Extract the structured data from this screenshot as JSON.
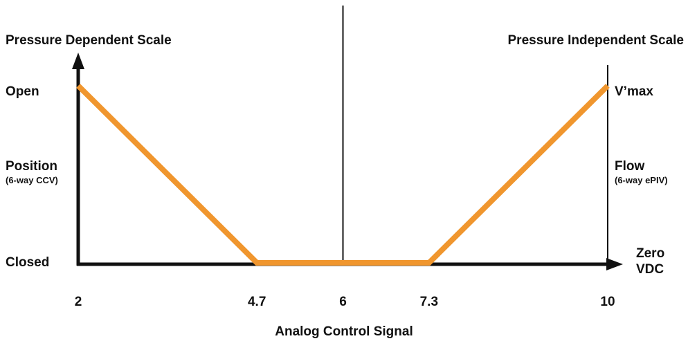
{
  "chart_data": {
    "type": "line",
    "title_left": "Pressure Dependent Scale",
    "title_right": "Pressure Independent Scale",
    "xlabel": "Analog Control Signal",
    "x_ticks": [
      "2",
      "4.7",
      "6",
      "7.3",
      "10"
    ],
    "xlim": [
      2,
      10
    ],
    "ylim": [
      0,
      1
    ],
    "y_left_labels": {
      "top": "Open",
      "mid": "Position",
      "mid_sub": "(6-way CCV)",
      "bottom": "Closed"
    },
    "y_right_labels": {
      "top": "V’max",
      "mid": "Flow",
      "mid_sub": "(6-way ePIV)",
      "bottom_line1": "Zero",
      "bottom_line2": "VDC"
    },
    "series": [
      {
        "x": [
          2,
          4.7,
          7.3,
          10
        ],
        "y": [
          1,
          0,
          0,
          1
        ]
      }
    ],
    "divider_x": 6,
    "line_color": "#F0962E",
    "axis_color": "#111111"
  }
}
